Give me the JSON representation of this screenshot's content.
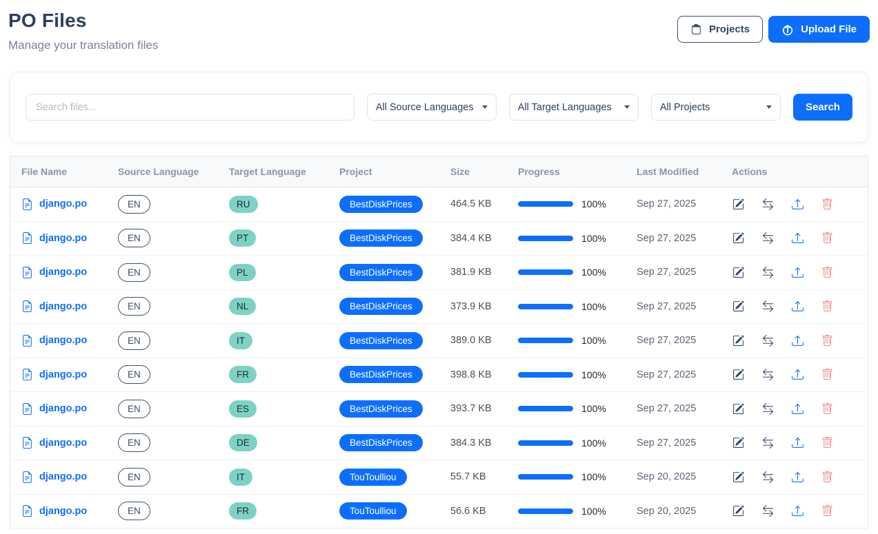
{
  "page": {
    "title": "PO Files",
    "subtitle": "Manage your translation files"
  },
  "header": {
    "projects_label": "Projects",
    "upload_label": "Upload File"
  },
  "filters": {
    "search_placeholder": "Search files...",
    "source_dropdown": "All Source Languages",
    "target_dropdown": "All Target Languages",
    "project_dropdown": "All Projects",
    "search_button": "Search"
  },
  "colors": {
    "primary_blue": "#0d6efd",
    "title_navy": "#2f3f5c",
    "teal_badge": "#7dd2c5",
    "trash_red": "#ee8d8d",
    "header_gray": "#8a94a6"
  },
  "icons": {
    "projects_button": "archive-box-icon",
    "upload_button": "cloud-upload-icon",
    "file": "file-document-icon",
    "actions": [
      "edit-icon",
      "swap-arrows-icon",
      "upload-icon",
      "trash-icon"
    ]
  },
  "table": {
    "columns": [
      "File Name",
      "Source Language",
      "Target Language",
      "Project",
      "Size",
      "Progress",
      "Last Modified",
      "Actions"
    ],
    "rows": [
      {
        "file": "django.po",
        "source": "EN",
        "target": "RU",
        "project": "BestDiskPrices",
        "size": "464.5 KB",
        "progress": 100,
        "progress_label": "100%",
        "modified": "Sep 27, 2025"
      },
      {
        "file": "django.po",
        "source": "EN",
        "target": "PT",
        "project": "BestDiskPrices",
        "size": "384.4 KB",
        "progress": 100,
        "progress_label": "100%",
        "modified": "Sep 27, 2025"
      },
      {
        "file": "django.po",
        "source": "EN",
        "target": "PL",
        "project": "BestDiskPrices",
        "size": "381.9 KB",
        "progress": 100,
        "progress_label": "100%",
        "modified": "Sep 27, 2025"
      },
      {
        "file": "django.po",
        "source": "EN",
        "target": "NL",
        "project": "BestDiskPrices",
        "size": "373.9 KB",
        "progress": 100,
        "progress_label": "100%",
        "modified": "Sep 27, 2025"
      },
      {
        "file": "django.po",
        "source": "EN",
        "target": "IT",
        "project": "BestDiskPrices",
        "size": "389.0 KB",
        "progress": 100,
        "progress_label": "100%",
        "modified": "Sep 27, 2025"
      },
      {
        "file": "django.po",
        "source": "EN",
        "target": "FR",
        "project": "BestDiskPrices",
        "size": "398.8 KB",
        "progress": 100,
        "progress_label": "100%",
        "modified": "Sep 27, 2025"
      },
      {
        "file": "django.po",
        "source": "EN",
        "target": "ES",
        "project": "BestDiskPrices",
        "size": "393.7 KB",
        "progress": 100,
        "progress_label": "100%",
        "modified": "Sep 27, 2025"
      },
      {
        "file": "django.po",
        "source": "EN",
        "target": "DE",
        "project": "BestDiskPrices",
        "size": "384.3 KB",
        "progress": 100,
        "progress_label": "100%",
        "modified": "Sep 27, 2025"
      },
      {
        "file": "django.po",
        "source": "EN",
        "target": "IT",
        "project": "TouToulliou",
        "size": "55.7 KB",
        "progress": 100,
        "progress_label": "100%",
        "modified": "Sep 20, 2025"
      },
      {
        "file": "django.po",
        "source": "EN",
        "target": "FR",
        "project": "TouToulliou",
        "size": "56.6 KB",
        "progress": 100,
        "progress_label": "100%",
        "modified": "Sep 20, 2025"
      }
    ]
  }
}
